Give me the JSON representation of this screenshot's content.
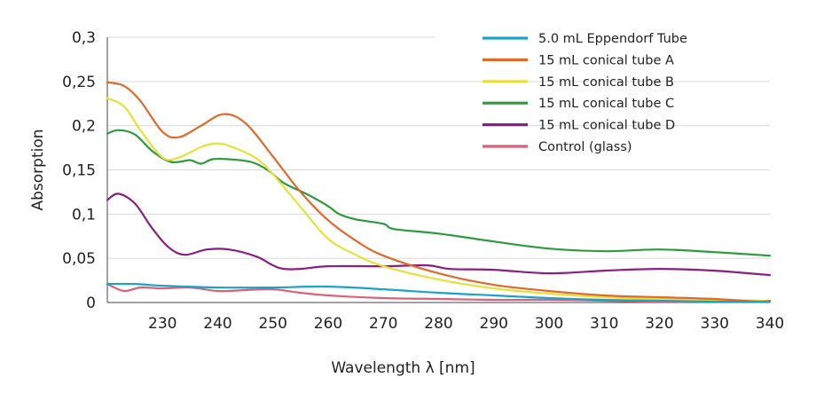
{
  "chart_data": {
    "type": "line",
    "title": "",
    "xlabel": "Wavelength λ [nm]",
    "ylabel": "Absorption",
    "xlim": [
      220,
      340
    ],
    "ylim": [
      0,
      0.3
    ],
    "grid": true,
    "legend_position": "top-right",
    "x_ticks": [
      230,
      240,
      250,
      260,
      270,
      280,
      290,
      300,
      310,
      320,
      330,
      340
    ],
    "x_tick_labels": [
      "230",
      "240",
      "250",
      "260",
      "270",
      "280",
      "290",
      "300",
      "310",
      "320",
      "330",
      "340"
    ],
    "y_ticks": [
      0,
      0.05,
      0.1,
      0.15,
      0.2,
      0.25,
      0.3
    ],
    "y_tick_labels": [
      "0",
      "0,05",
      "0,1",
      "0,15",
      "0,2",
      "0,25",
      "0,3"
    ],
    "series": [
      {
        "name": "5.0 mL Eppendorf Tube",
        "color": "#1aa3c8",
        "x": [
          220,
          225,
          230,
          240,
          250,
          260,
          270,
          280,
          290,
          300,
          310,
          320,
          330,
          340
        ],
        "values": [
          0.021,
          0.021,
          0.019,
          0.017,
          0.017,
          0.018,
          0.015,
          0.011,
          0.008,
          0.005,
          0.003,
          0.002,
          0.001,
          0.001
        ]
      },
      {
        "name": "15 mL conical tube A",
        "color": "#e06a2a",
        "x": [
          220,
          223,
          226,
          230,
          233,
          237,
          241,
          245,
          250,
          255,
          260,
          265,
          270,
          280,
          290,
          300,
          310,
          320,
          330,
          338,
          340
        ],
        "values": [
          0.249,
          0.245,
          0.228,
          0.193,
          0.187,
          0.2,
          0.213,
          0.203,
          0.165,
          0.125,
          0.093,
          0.07,
          0.053,
          0.033,
          0.02,
          0.013,
          0.008,
          0.006,
          0.004,
          0.001,
          0.002
        ]
      },
      {
        "name": "15 mL conical tube B",
        "color": "#e8e03a",
        "x": [
          220,
          223,
          226,
          230,
          233,
          237,
          240,
          243,
          247,
          250,
          255,
          260,
          265,
          270,
          280,
          290,
          300,
          310,
          320,
          330,
          340
        ],
        "values": [
          0.231,
          0.222,
          0.195,
          0.164,
          0.164,
          0.176,
          0.18,
          0.175,
          0.163,
          0.145,
          0.108,
          0.072,
          0.054,
          0.041,
          0.026,
          0.016,
          0.01,
          0.006,
          0.004,
          0.003,
          0.002
        ]
      },
      {
        "name": "15 mL conical tube C",
        "color": "#2e9a3e",
        "x": [
          220,
          222,
          225,
          228,
          231,
          233,
          235,
          237,
          239,
          242,
          246,
          249,
          252,
          256,
          260,
          262,
          265,
          270,
          272,
          280,
          290,
          300,
          310,
          320,
          330,
          340
        ],
        "values": [
          0.191,
          0.195,
          0.19,
          0.172,
          0.16,
          0.159,
          0.161,
          0.157,
          0.162,
          0.162,
          0.159,
          0.15,
          0.135,
          0.123,
          0.109,
          0.1,
          0.094,
          0.089,
          0.083,
          0.078,
          0.069,
          0.061,
          0.058,
          0.06,
          0.057,
          0.053
        ]
      },
      {
        "name": "15 mL conical tube D",
        "color": "#8a1f82",
        "x": [
          220,
          222,
          225,
          228,
          231,
          234,
          238,
          242,
          247,
          250,
          252,
          255,
          260,
          270,
          278,
          282,
          290,
          300,
          310,
          320,
          330,
          340
        ],
        "values": [
          0.116,
          0.123,
          0.112,
          0.085,
          0.063,
          0.054,
          0.06,
          0.06,
          0.052,
          0.042,
          0.038,
          0.038,
          0.041,
          0.041,
          0.042,
          0.038,
          0.037,
          0.033,
          0.036,
          0.038,
          0.036,
          0.031
        ]
      },
      {
        "name": "Control (glass)",
        "color": "#d9627a",
        "x": [
          220,
          223,
          226,
          230,
          235,
          240,
          245,
          250,
          255,
          260,
          270,
          280,
          290,
          300,
          310,
          320,
          330,
          340
        ],
        "values": [
          0.021,
          0.013,
          0.017,
          0.016,
          0.017,
          0.013,
          0.014,
          0.015,
          0.011,
          0.008,
          0.005,
          0.004,
          0.003,
          0.003,
          0.002,
          0.001,
          0.001,
          0.001
        ]
      }
    ]
  }
}
